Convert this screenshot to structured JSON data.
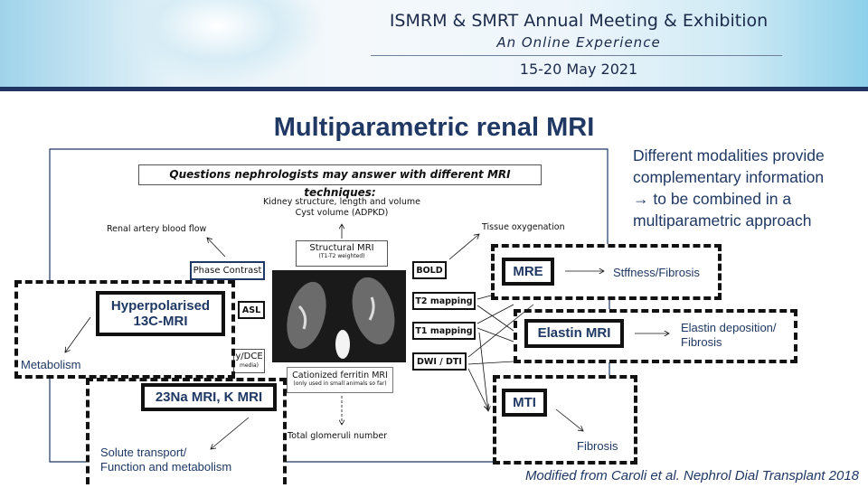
{
  "banner": {
    "title": "ISMRM & SMRT Annual Meeting & Exhibition",
    "subtitle": "An Online Experience",
    "date": "15-20 May 2021"
  },
  "slide": {
    "title": "Multiparametric renal MRI",
    "side_text": [
      "Different modalities provide",
      "complementary information",
      "→ to be combined in a",
      "multiparametric approach"
    ],
    "citation": "Modified from Caroli et al. Nephrol Dial Transplant 2018"
  },
  "diagram": {
    "header": "Questions nephrologists may answer with different MRI techniques:",
    "kidney_structure": [
      "Kidney structure, length and volume",
      "Cyst volume (ADPKD)"
    ],
    "renal_artery": "Renal artery blood flow",
    "phase_contrast": "Phase Contrast",
    "structural_mri": {
      "label": "Structural MRI",
      "note": "(T1-T2 weighted)"
    },
    "asl": "ASL",
    "dce": {
      "label": "y/DCE",
      "note": "media)"
    },
    "bold": "BOLD",
    "t2": "T2 mapping",
    "t1": "T1 mapping",
    "dwi": "DWI / DTI",
    "tissue_oxygenation": "Tissue oxygenation",
    "ferritin": {
      "label": "Cationized ferritin MRI",
      "note": "(only used in small animals so far)"
    },
    "glomeruli": "Total glomeruli number",
    "hyperpolarised": {
      "label": [
        "Hyperpolarised",
        "13C-MRI"
      ],
      "result": "Metabolism"
    },
    "sodium": {
      "label": "23Na MRI, K MRI",
      "result": [
        "Solute transport/",
        "Function and metabolism"
      ]
    },
    "mre": {
      "label": "MRE",
      "result": "Stffness/Fibrosis"
    },
    "elastin": {
      "label": "Elastin MRI",
      "result": [
        "Elastin deposition/",
        "Fibrosis"
      ]
    },
    "mti": {
      "label": "MTI",
      "result": "Fibrosis"
    }
  },
  "colors": {
    "navy": "#1f3864",
    "banner_bar": "#1f3564"
  }
}
